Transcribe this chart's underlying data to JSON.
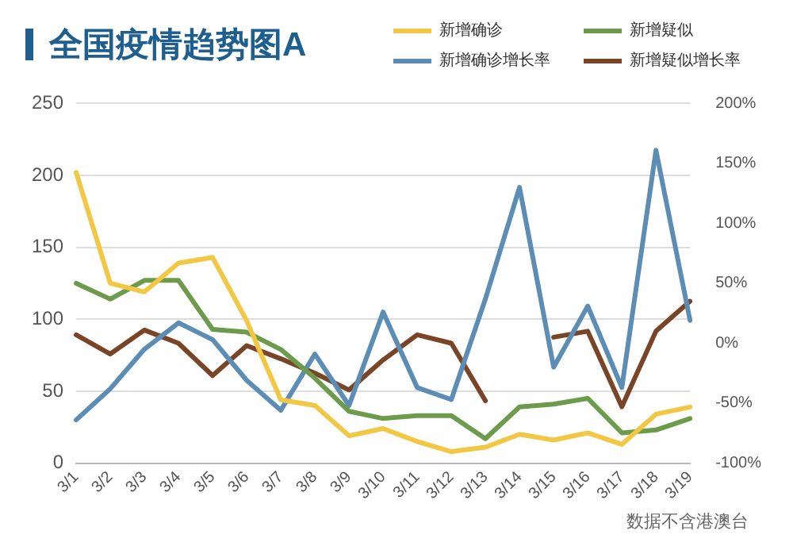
{
  "chart_data": {
    "type": "line",
    "title": "全国疫情趋势图A",
    "annotations": [
      "数据不含港澳台"
    ],
    "categories": [
      "3/1",
      "3/2",
      "3/3",
      "3/4",
      "3/5",
      "3/6",
      "3/7",
      "3/8",
      "3/9",
      "3/10",
      "3/11",
      "3/12",
      "3/13",
      "3/14",
      "3/15",
      "3/16",
      "3/17",
      "3/18",
      "3/19"
    ],
    "series": [
      {
        "name": "新增确诊",
        "color": "#f2c744",
        "values": [
          202,
          125,
          119,
          139,
          143,
          99,
          44,
          40,
          19,
          24,
          15,
          8,
          11,
          20,
          16,
          21,
          13,
          34,
          39
        ]
      },
      {
        "name": "新增疑似",
        "color": "#6b9b4b",
        "values": [
          125,
          114,
          127,
          127,
          93,
          91,
          79,
          59,
          36,
          31,
          33,
          33,
          17,
          39,
          41,
          45,
          21,
          23,
          31
        ]
      },
      {
        "name": "新增确诊增长率",
        "color": "#5b8db5",
        "axis": "y2",
        "values": [
          -64,
          -38,
          -5,
          17,
          3,
          -31,
          -56,
          -9,
          -52,
          26,
          -37,
          -47,
          37,
          130,
          -20,
          31,
          -37,
          161,
          19
        ]
      },
      {
        "name": "新增疑似增长率",
        "color": "#7a4526",
        "axis": "y2",
        "values": [
          7,
          -9,
          11,
          0,
          -27,
          -2,
          -13,
          -25,
          -39,
          -14,
          7,
          0,
          -48,
          null,
          5,
          10,
          -53,
          10,
          35
        ]
      }
    ],
    "ylim": [
      0,
      250
    ],
    "yticks": [
      0,
      50,
      100,
      150,
      200,
      250
    ],
    "y2lim": [
      -100,
      200
    ],
    "y2ticks": [
      {
        "value": -100,
        "label": "-100%"
      },
      {
        "value": -50,
        "label": "-50%"
      },
      {
        "value": 0,
        "label": "0%"
      },
      {
        "value": 50,
        "label": "50%"
      },
      {
        "value": 100,
        "label": "100%"
      },
      {
        "value": 150,
        "label": "150%"
      },
      {
        "value": 200,
        "label": "200%"
      }
    ],
    "grid": "y",
    "legend": "top right",
    "marker": "none",
    "line_style": "solid"
  }
}
